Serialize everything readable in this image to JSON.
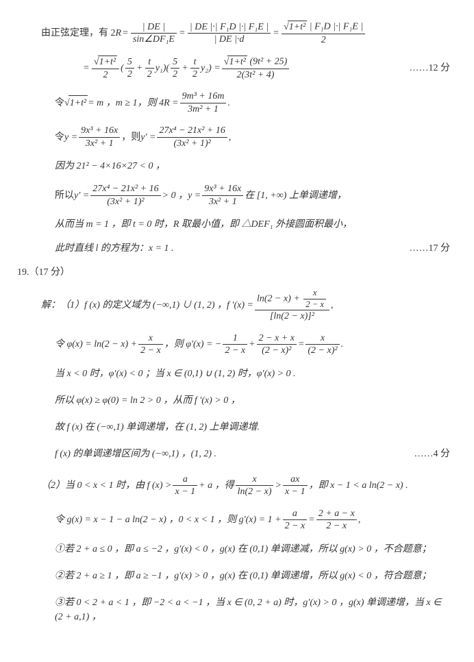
{
  "line1_prefix": "由正弦定理，有 2",
  "line1_R": "R",
  "line1_eq": " = ",
  "frac1_n": "| DE |",
  "frac1_d_sin": "sin",
  "frac1_d_ang": "∠DF₁E",
  "frac2_n": "| DE |·| F₁D |·| F₁E |",
  "frac2_d": "| DE |·d",
  "frac3_n_sqrt": "1+t²",
  "frac3_n_rest": " | F₁D |·| F₁E |",
  "frac3_d": "2",
  "line2_eq": " = ",
  "line2_f1_n_sqrt": "1+t²",
  "line2_f1_d": "2",
  "line2_paren_a_n": "5",
  "line2_paren_a_d": "2",
  "line2_paren_b_n": "t",
  "line2_paren_b_d": "2",
  "line2_y1": "y₁",
  "line2_y2": "y₂",
  "line2_f2_n_sqrt": "1+t²",
  "line2_f2_n_rest": " (9t² + 25)",
  "line2_f2_d": "2(3t² + 4)",
  "line2_note": "……12 分",
  "line3_pre": "令",
  "line3_sqrt": "1+t²",
  "line3_mid": " = m ，m ≥ 1，则 4R = ",
  "line3_fr_n": "9m³ + 16m",
  "line3_fr_d": "3m² + 1",
  "line3_dot": " .",
  "line4_pre": "令 y = ",
  "line4_f1_n": "9x³ + 16x",
  "line4_f1_d": "3x² + 1",
  "line4_mid": " ，则 y′ = ",
  "line4_f2_n": "27x⁴ − 21x² + 16",
  "line4_f2_d": "(3x² + 1)²",
  "line4_end": " ,",
  "line5": "因为 21² − 4×16×27 < 0 ，",
  "line6_pre": "所以 y′ = ",
  "line6_f1_n": "27x⁴ − 21x² + 16",
  "line6_f1_d": "(3x² + 1)²",
  "line6_mid": " > 0 ，y = ",
  "line6_f2_n": "9x³ + 16x",
  "line6_f2_d": "3x² + 1",
  "line6_end": " 在 [1, +∞) 上单调递增，",
  "line7": "从而当 m = 1 ，即 t = 0 时，R 取最小值，即 △DEF₁ 外接圆面积最小，",
  "line8": "此时直线 l 的方程为：x = 1 .",
  "line8_note": "……17 分",
  "q_label": "19.（17 分）",
  "p1_pre": "解：（1）f (x) 的定义域为 (−∞,1) ∪ (1, 2) ，f ′(x) = ",
  "p1_fr_n_a": "ln(2 − x) + ",
  "p1_fr_n_inner_n": "x",
  "p1_fr_n_inner_d": "2 − x",
  "p1_fr_d": "[ln(2 − x)]²",
  "p1_end": " ,",
  "p2_pre": "令 φ(x) = ln(2 − x) + ",
  "p2_f1_n": "x",
  "p2_f1_d": "2 − x",
  "p2_mid": " ，则 φ′(x) = − ",
  "p2_f2_n": "1",
  "p2_f2_d": "2 − x",
  "p2_mid2": " + ",
  "p2_f3_n": "2 − x + x",
  "p2_f3_d": "(2 − x)²",
  "p2_mid3": " = ",
  "p2_f4_n": "x",
  "p2_f4_d": "(2 − x)²",
  "p2_end": " .",
  "p3": "当 x < 0 时，φ′(x) < 0 ；当 x ∈ (0,1) ∪ (1, 2) 时，φ′(x) > 0 .",
  "p4": "所以 φ(x) ≥ φ(0) = ln 2 > 0 ，从而 f ′(x) > 0 ，",
  "p5": "故 f (x) 在 (−∞,1) 单调递增，在 (1, 2) 上单调递增.",
  "p6": "f (x) 的单调递增区间为 (−∞,1) ，(1, 2) .",
  "p6_note": "……4 分",
  "p7_pre": "（2）当 0 < x < 1 时，由 f (x) > ",
  "p7_f1_n": "a",
  "p7_f1_d": "x − 1",
  "p7_mid": " + a ，得 ",
  "p7_f2_n": "x",
  "p7_f2_d": "ln(2 − x)",
  "p7_mid2": " > ",
  "p7_f3_n": "ax",
  "p7_f3_d": "x − 1",
  "p7_end": " ，即 x − 1 < a ln(2 − x) .",
  "p8_pre": "令 g(x) = x − 1 − a ln(2 − x) ，0 < x < 1 ，则 g′(x) = 1 + ",
  "p8_f1_n": "a",
  "p8_f1_d": "2 − x",
  "p8_mid": " = ",
  "p8_f2_n": "2 + a − x",
  "p8_f2_d": "2 − x",
  "p8_end": " ,",
  "p9": "①若 2 + a ≤ 0 ，即 a ≤ −2 ，g′(x) < 0 ，g(x) 在 (0,1) 单调递减，所以 g(x) > 0 ，不合题意；",
  "p10": "②若 2 + a ≥ 1 ，即 a ≥ −1 ，g′(x) > 0 ，g(x) 在 (0,1) 单调递增，所以 g(x) < 0 ，符合题意；",
  "p11": "③若 0 < 2 + a < 1 ，即 −2 < a < −1 ，当 x ∈ (0, 2 + a) 时，g′(x) > 0 ，g(x) 单调递增，当 x ∈ (2 + a,1) ，"
}
